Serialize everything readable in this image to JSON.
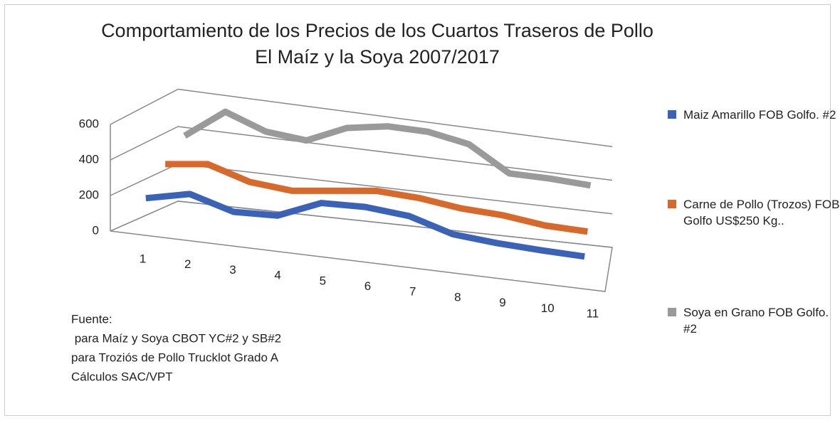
{
  "chart_data": {
    "type": "line3d",
    "title": [
      "Comportamiento de los Precios de los Cuartos Traseros de Pollo",
      "El Maíz y la Soya 2007/2017"
    ],
    "categories": [
      "1",
      "2",
      "3",
      "4",
      "5",
      "6",
      "7",
      "8",
      "9",
      "10",
      "11"
    ],
    "series": [
      {
        "name": "Maiz Amarillo FOB Golfo. #2",
        "color": "#3a62b8",
        "values": [
          165,
          220,
          150,
          160,
          265,
          275,
          255,
          180,
          160,
          150,
          145
        ]
      },
      {
        "name": "Carne de Pollo (Trozos) FOB Golfo US$250 Kg..",
        "color": "#d9692a",
        "values": [
          300,
          330,
          260,
          240,
          270,
          300,
          290,
          260,
          250,
          220,
          215
        ]
      },
      {
        "name": "Soya en Grano FOB Golfo. #2",
        "color": "#9a9a9a",
        "values": [
          400,
          560,
          480,
          460,
          560,
          600,
          600,
          560,
          420,
          420,
          410
        ]
      }
    ],
    "ylim": [
      0,
      600
    ],
    "yticks": [
      0,
      200,
      400,
      600
    ],
    "grid": true,
    "legend": "right",
    "footnote": [
      "Fuente:",
      " para Maíz y Soya CBOT YC#2 y SB#2",
      "para Troziós de Pollo Trucklot Grado A",
      "Cálculos SAC/VPT"
    ]
  }
}
